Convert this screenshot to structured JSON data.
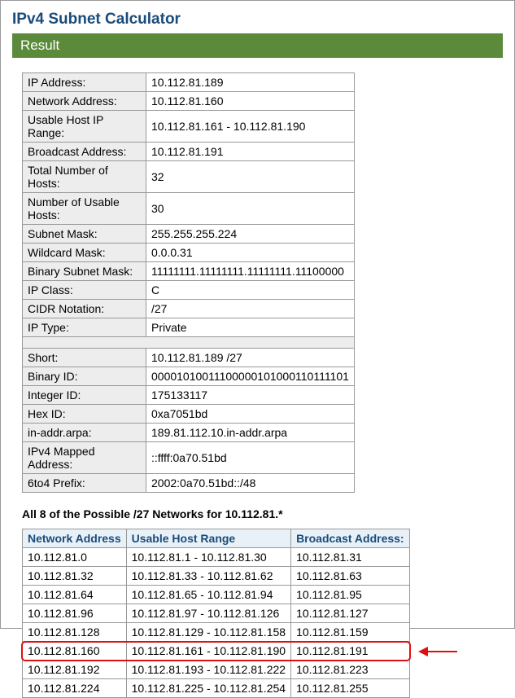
{
  "title": "IPv4 Subnet Calculator",
  "result_label": "Result",
  "info": {
    "rows1": [
      {
        "label": "IP Address:",
        "value": "10.112.81.189"
      },
      {
        "label": "Network Address:",
        "value": "10.112.81.160"
      },
      {
        "label": "Usable Host IP Range:",
        "value": "10.112.81.161 - 10.112.81.190"
      },
      {
        "label": "Broadcast Address:",
        "value": "10.112.81.191"
      },
      {
        "label": "Total Number of Hosts:",
        "value": "32"
      },
      {
        "label": "Number of Usable Hosts:",
        "value": "30"
      },
      {
        "label": "Subnet Mask:",
        "value": "255.255.255.224"
      },
      {
        "label": "Wildcard Mask:",
        "value": "0.0.0.31"
      },
      {
        "label": "Binary Subnet Mask:",
        "value": "11111111.11111111.11111111.11100000"
      },
      {
        "label": "IP Class:",
        "value": "C"
      },
      {
        "label": "CIDR Notation:",
        "value": "/27"
      },
      {
        "label": "IP Type:",
        "value": "Private"
      }
    ],
    "rows2": [
      {
        "label": "Short:",
        "value": "10.112.81.189 /27"
      },
      {
        "label": "Binary ID:",
        "value": "00001010011100000101000110111101"
      },
      {
        "label": "Integer ID:",
        "value": "175133117"
      },
      {
        "label": "Hex ID:",
        "value": "0xa7051bd"
      },
      {
        "label": "in-addr.arpa:",
        "value": "189.81.112.10.in-addr.arpa"
      },
      {
        "label": "IPv4 Mapped Address:",
        "value": "::ffff:0a70.51bd"
      },
      {
        "label": "6to4 Prefix:",
        "value": "2002:0a70.51bd::/48"
      }
    ]
  },
  "subhead": "All 8 of the Possible /27 Networks for 10.112.81.*",
  "net_table": {
    "headers": [
      "Network Address",
      "Usable Host Range",
      "Broadcast Address:"
    ],
    "rows": [
      [
        "10.112.81.0",
        "10.112.81.1 - 10.112.81.30",
        "10.112.81.31"
      ],
      [
        "10.112.81.32",
        "10.112.81.33 - 10.112.81.62",
        "10.112.81.63"
      ],
      [
        "10.112.81.64",
        "10.112.81.65 - 10.112.81.94",
        "10.112.81.95"
      ],
      [
        "10.112.81.96",
        "10.112.81.97 - 10.112.81.126",
        "10.112.81.127"
      ],
      [
        "10.112.81.128",
        "10.112.81.129 - 10.112.81.158",
        "10.112.81.159"
      ],
      [
        "10.112.81.160",
        "10.112.81.161 - 10.112.81.190",
        "10.112.81.191"
      ],
      [
        "10.112.81.192",
        "10.112.81.193 - 10.112.81.222",
        "10.112.81.223"
      ],
      [
        "10.112.81.224",
        "10.112.81.225 - 10.112.81.254",
        "10.112.81.255"
      ]
    ],
    "highlight_row_index": 5
  },
  "colors": {
    "title": "#1a4b7a",
    "result_bar_bg": "#5a8a3a",
    "label_bg": "#ededed",
    "header_bg": "#e9f1f8",
    "border": "#999999",
    "highlight": "#d11"
  }
}
